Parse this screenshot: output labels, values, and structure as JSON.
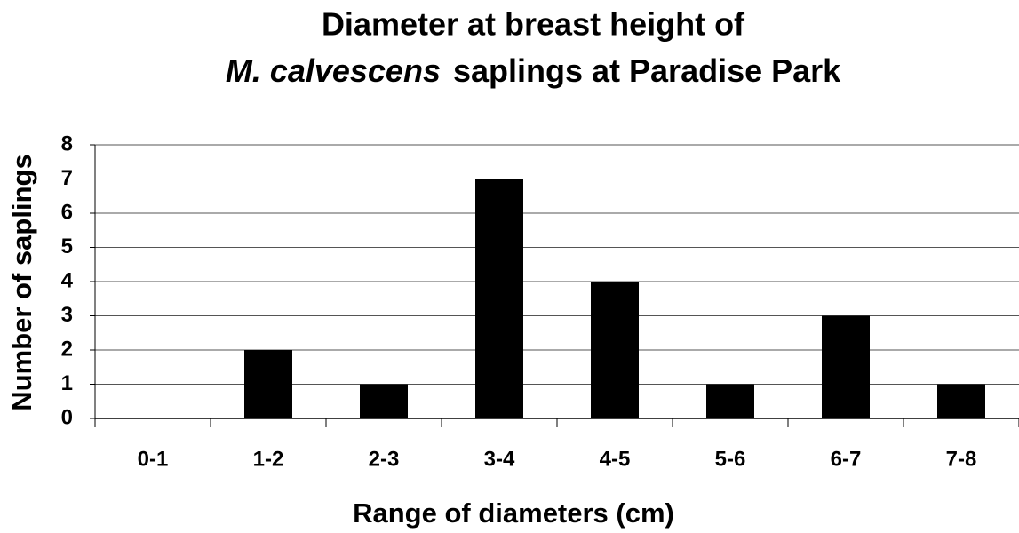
{
  "chart_data": {
    "type": "bar",
    "title": {
      "line1": "Diameter at breast height of",
      "species": "M. calvescens",
      "line2": "saplings at Paradise Park"
    },
    "x_label": "Range of diameters (cm)",
    "y_label": "Number of saplings",
    "categories": [
      "0-1",
      "1-2",
      "2-3",
      "3-4",
      "4-5",
      "5-6",
      "6-7",
      "7-8"
    ],
    "values": [
      0,
      2,
      1,
      7,
      4,
      1,
      3,
      1
    ],
    "color": "#000000",
    "ylim": [
      0,
      8
    ],
    "yticks": [
      0,
      1,
      2,
      3,
      4,
      5,
      6,
      7,
      8
    ],
    "grid": true
  }
}
